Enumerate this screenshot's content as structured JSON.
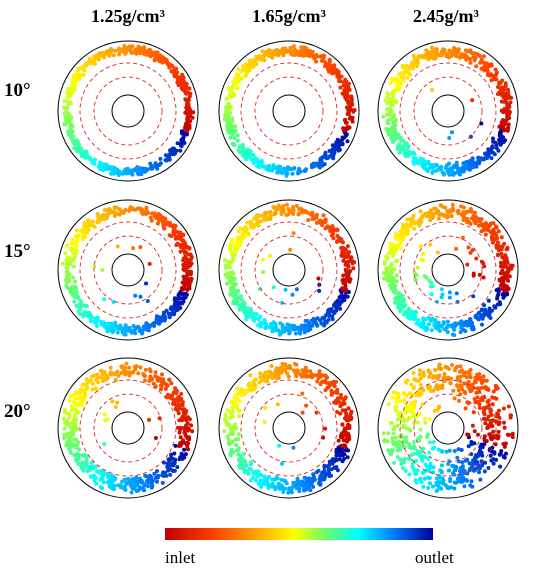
{
  "columns": [
    "1.25g/cm³",
    "1.65g/cm³",
    "2.45g/m³"
  ],
  "rows": [
    "10°",
    "15°",
    "20°"
  ],
  "colorbar": {
    "start_label": "inlet",
    "end_label": "outlet"
  }
}
